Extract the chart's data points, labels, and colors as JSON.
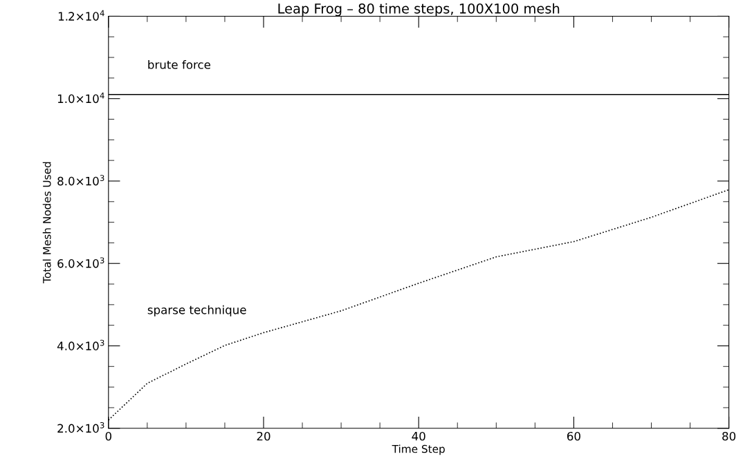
{
  "chart_data": {
    "type": "line",
    "title": "Leap Frog – 80 time steps, 100X100 mesh",
    "xlabel": "Time Step",
    "ylabel": "Total Mesh Nodes Used",
    "series": [
      {
        "color": "#000000",
        "line_style": "solid",
        "x": [
          0,
          80
        ],
        "values": [
          10100,
          10100
        ]
      },
      {
        "color": "#000000",
        "line_style": "dotted",
        "x": [
          0,
          5,
          10,
          15,
          20,
          30,
          40,
          50,
          60,
          70,
          80
        ],
        "values": [
          2200,
          3090,
          3560,
          4010,
          4320,
          4850,
          5520,
          6160,
          6530,
          7120,
          7790
        ]
      }
    ],
    "annotations": [
      "brute force",
      "sparse technique"
    ],
    "xlim": [
      0,
      80
    ],
    "xticks": [
      0,
      20,
      40,
      60,
      80
    ],
    "ylim": [
      2000,
      12000
    ],
    "yticks": [
      {
        "value": 2000,
        "label": "2.0×10$^{3}$"
      },
      {
        "value": 4000,
        "label": "4.0×10$^{3}$"
      },
      {
        "value": 6000,
        "label": "6.0×10$^{3}$"
      },
      {
        "value": 8000,
        "label": "8.0×10$^{3}$"
      },
      {
        "value": 10000,
        "label": "1.0×10$^{4}$"
      },
      {
        "value": 12000,
        "label": "1.2×10$^{4}$"
      }
    ],
    "grid": false,
    "legend": false,
    "marker": "none"
  }
}
